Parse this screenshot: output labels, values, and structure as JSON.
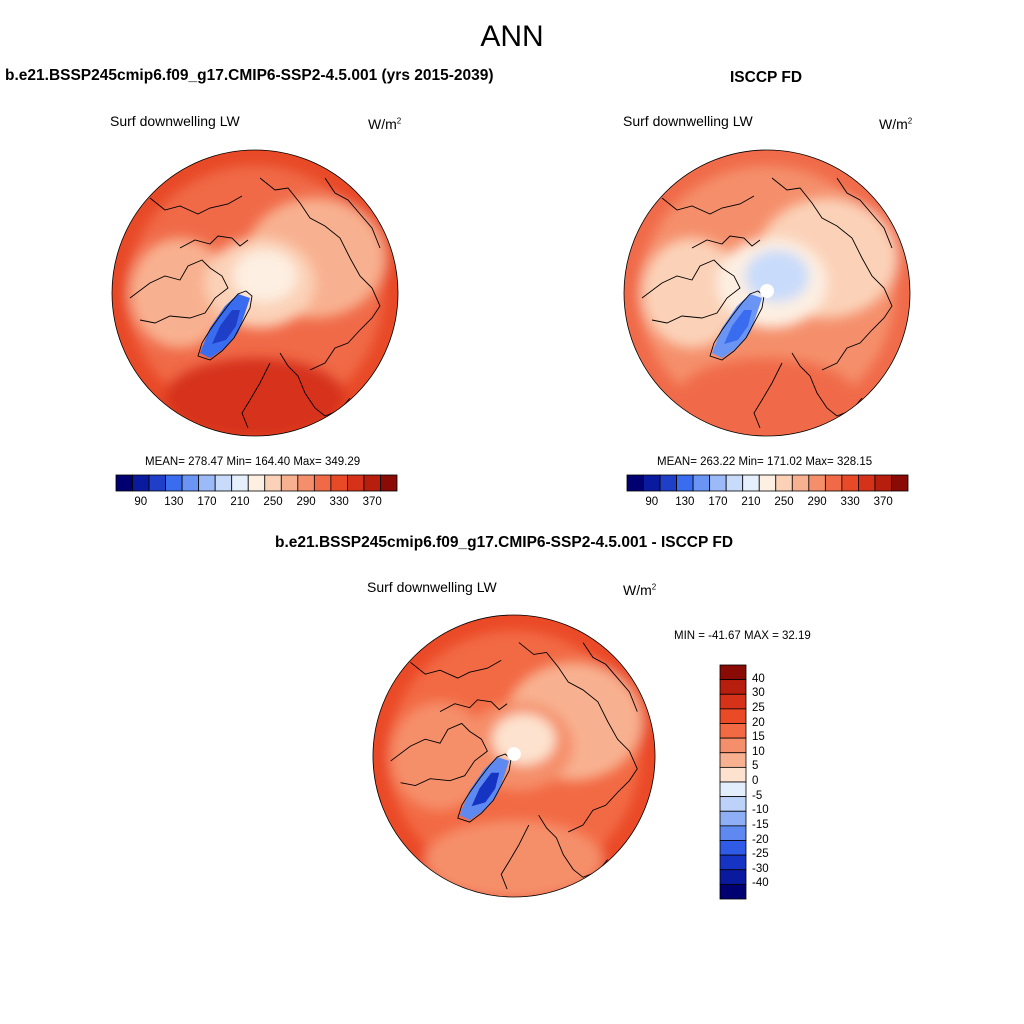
{
  "title": "ANN",
  "panels": {
    "model": {
      "title": "b.e21.BSSP245cmip6.f09_g17.CMIP6-SSP2-4.5.001 (yrs 2015-2039)",
      "variable": "Surf downwelling LW",
      "units_base": "W/m",
      "units_exp": "2",
      "stats": "MEAN= 278.47  Min= 164.40  Max= 349.29"
    },
    "obs": {
      "title": "ISCCP FD",
      "variable": "Surf downwelling LW",
      "units_base": "W/m",
      "units_exp": "2",
      "stats": "MEAN= 263.22  Min= 171.02  Max= 328.15"
    },
    "diff": {
      "title": "b.e21.BSSP245cmip6.f09_g17.CMIP6-SSP2-4.5.001 - ISCCP FD",
      "variable": "Surf downwelling LW",
      "units_base": "W/m",
      "units_exp": "2",
      "stats": "MIN = -41.67 MAX =  32.19"
    }
  },
  "colorbar_abs": {
    "colors": [
      "#000070",
      "#0a1a9e",
      "#1f3fc9",
      "#3a6cf0",
      "#6a95f5",
      "#9cbaf7",
      "#c8dbfb",
      "#e6f0fd",
      "#fdefe2",
      "#fbd2b8",
      "#f8b190",
      "#f58f6b",
      "#f06a48",
      "#e84a28",
      "#d6321a",
      "#b71e0e",
      "#8a0a06"
    ],
    "ticks": [
      "90",
      "130",
      "170",
      "210",
      "250",
      "290",
      "330",
      "370"
    ]
  },
  "colorbar_diff": {
    "colors": [
      "#8a0a06",
      "#b71e0e",
      "#d6321a",
      "#ea4a26",
      "#f26a44",
      "#f58f6b",
      "#f8b190",
      "#fde3cf",
      "#e3eefc",
      "#bcd2f8",
      "#8eaff5",
      "#5e89f0",
      "#2f5be6",
      "#1634c4",
      "#0a1a9e",
      "#000070"
    ],
    "ticks": [
      "40",
      "30",
      "25",
      "20",
      "15",
      "10",
      "5",
      "0",
      "-5",
      "-10",
      "-15",
      "-20",
      "-25",
      "-30",
      "-40"
    ]
  },
  "map_fields": {
    "model": {
      "ocean_base": "#f06a48",
      "rim": "#e84a28",
      "atlantic": "#d6321a",
      "arctic": "#fbd2b8",
      "pole": "#fdefe2",
      "eurasia": "#f8b190",
      "america": "#f8b190",
      "greenland": "#3a6cf0",
      "greenland_core": "#1f3fc9"
    },
    "obs": {
      "ocean_base": "#f58f6b",
      "rim": "#f06a48",
      "atlantic": "#f06a48",
      "arctic": "#fdefe2",
      "pole": "#c8dbfb",
      "eurasia": "#fbd2b8",
      "america": "#fbd2b8",
      "greenland": "#6a95f5",
      "greenland_core": "#3a6cf0"
    },
    "diff": {
      "ocean_base": "#f26a44",
      "rim": "#ea4a26",
      "atlantic": "#f58f6b",
      "arctic": "#f58f6b",
      "pole": "#fde3cf",
      "eurasia": "#f8b190",
      "america": "#f58f6b",
      "greenland": "#5e89f0",
      "greenland_core": "#1634c4"
    }
  }
}
